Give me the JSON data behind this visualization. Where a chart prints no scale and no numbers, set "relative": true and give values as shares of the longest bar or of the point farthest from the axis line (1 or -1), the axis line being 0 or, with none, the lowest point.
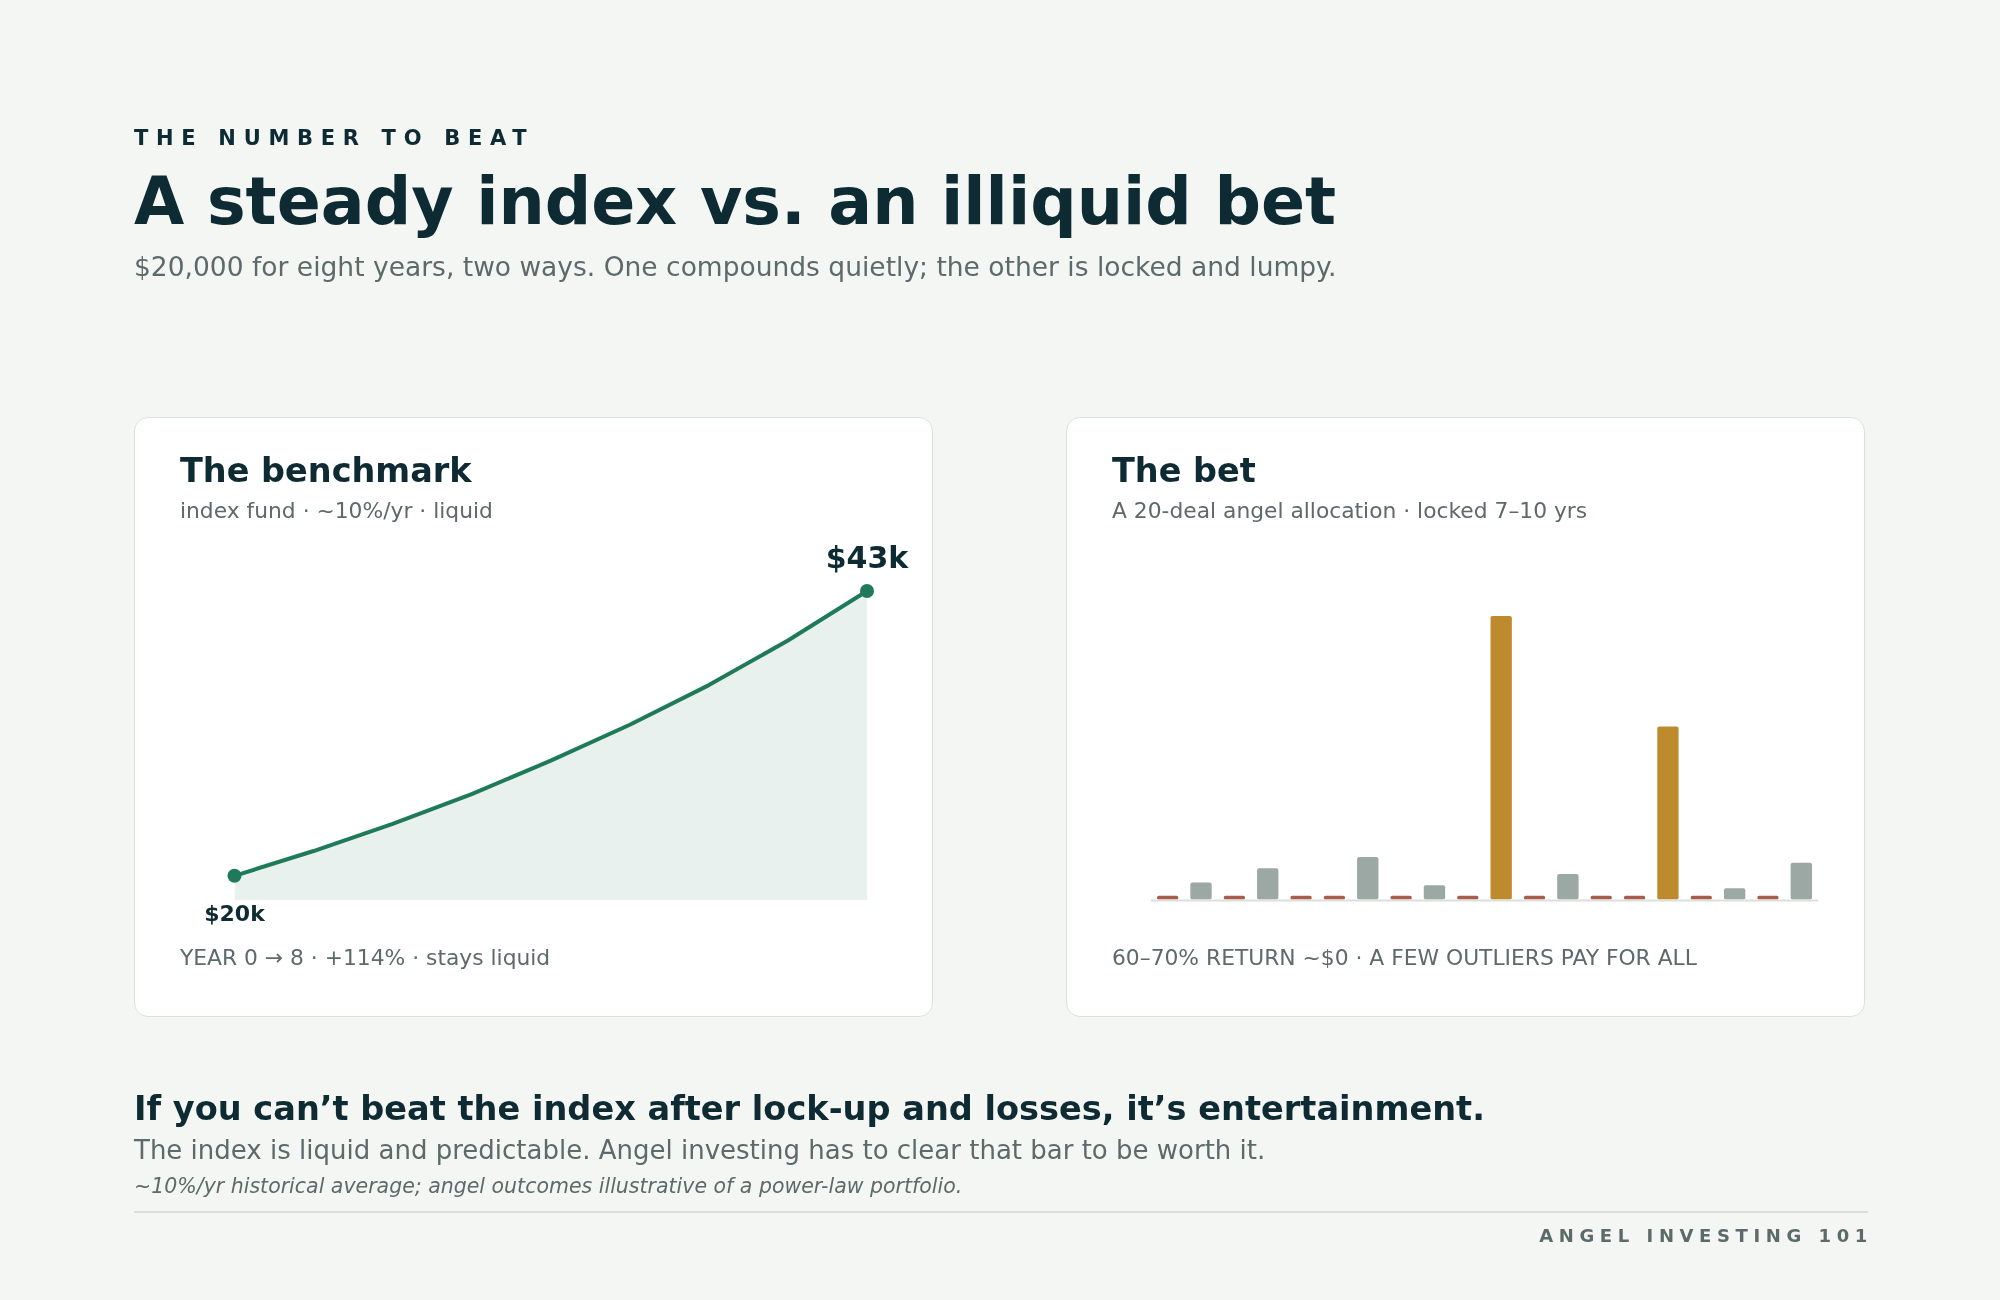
{
  "chart_data": [
    {
      "type": "other",
      "annotations": [
        "THE NUMBER TO BEAT"
      ],
      "title": "A steady index vs. an illiquid bet",
      "subtitle": "$20,000 for eight years, two ways. One compounds quietly; the other is locked and lumpy."
    },
    {
      "type": "area",
      "title": "The benchmark",
      "subtitle": "index fund · ~10%/yr · liquid",
      "categories": [
        null,
        null,
        null,
        null,
        null,
        null,
        null,
        null,
        null
      ],
      "values": [
        20,
        22,
        24.2,
        26.6,
        29.3,
        32.2,
        35.4,
        39,
        43
      ],
      "value_labels": [
        "$20k",
        null,
        null,
        null,
        null,
        null,
        null,
        null,
        "$43k"
      ],
      "color": "#1f7a5a",
      "tick_labels": false,
      "annotations": [
        "YEAR 0 → 8 · +114% · stays liquid"
      ]
    },
    {
      "type": "bar",
      "title": "The bet",
      "subtitle": "A 20-deal angel allocation · locked 7–10 yrs",
      "categories": [
        null,
        null,
        null,
        null,
        null,
        null,
        null,
        null,
        null,
        null,
        null,
        null,
        null,
        null,
        null,
        null,
        null,
        null,
        null,
        null
      ],
      "values": [
        0.013,
        0.06,
        0.013,
        0.11,
        0.013,
        0.013,
        0.15,
        0.013,
        0.05,
        0.013,
        1,
        0.013,
        0.09,
        0.013,
        0.013,
        0.61,
        0.013,
        0.04,
        0.013,
        0.13
      ],
      "colors": [
        "#a85c4c",
        "#9ba8a4",
        "#a85c4c",
        "#9ba8a4",
        "#a85c4c",
        "#a85c4c",
        "#9ba8a4",
        "#a85c4c",
        "#9ba8a4",
        "#a85c4c",
        "#bd8a2e",
        "#a85c4c",
        "#9ba8a4",
        "#a85c4c",
        "#a85c4c",
        "#bd8a2e",
        "#a85c4c",
        "#9ba8a4",
        "#a85c4c",
        "#9ba8a4"
      ],
      "relative": true,
      "tick_labels": false,
      "annotations": [
        "60–70% RETURN ~$0 · A FEW OUTLIERS PAY FOR ALL"
      ]
    },
    {
      "type": "other",
      "title": "If you can’t beat the index after lock-up and losses, it’s entertainment.",
      "subtitle": "The index is liquid and predictable. Angel investing has to clear that bar to be worth it.",
      "annotations": [
        "~10%/yr historical average; angel outcomes illustrative of a power-law portfolio.",
        "ANGEL INVESTING 101"
      ]
    }
  ]
}
